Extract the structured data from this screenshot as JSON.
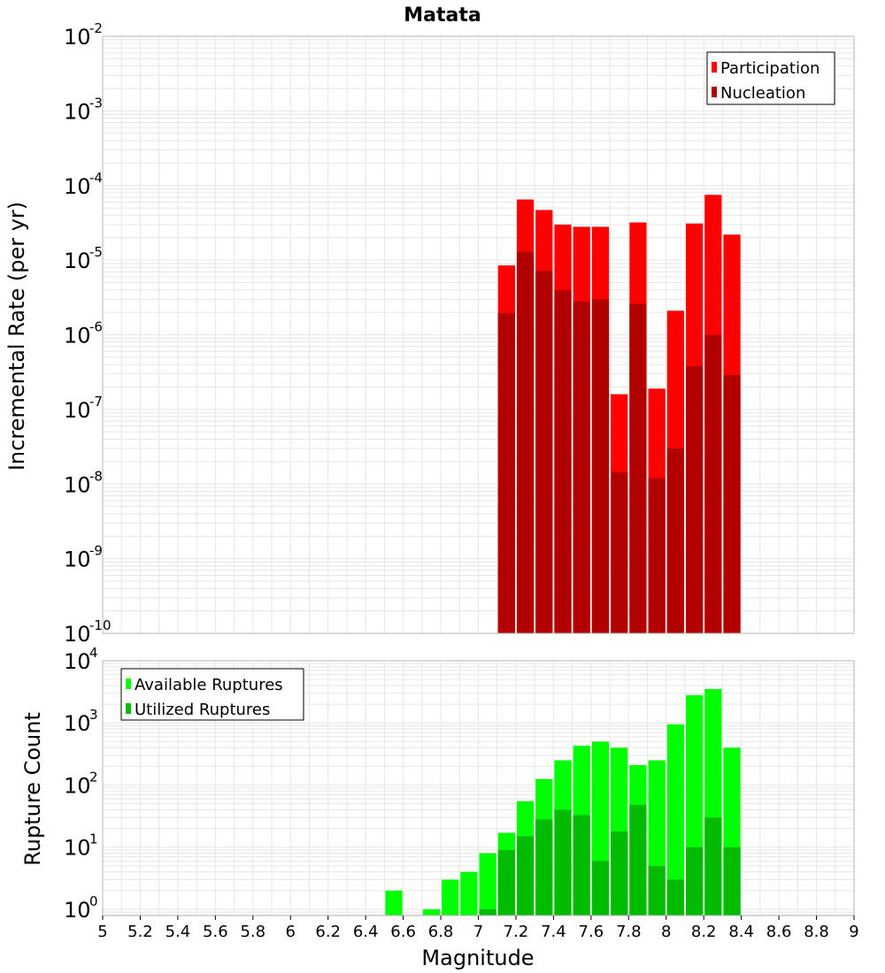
{
  "chart_data": [
    {
      "type": "bar",
      "title": "Matata",
      "xlabel": "",
      "ylabel": "Incremental Rate (per yr)",
      "xlim": [
        5,
        9
      ],
      "ylim_log10": [
        -10,
        -2
      ],
      "yscale": "log",
      "y_ticks_exp": [
        -10,
        -9,
        -8,
        -7,
        -6,
        -5,
        -4,
        -3,
        -2
      ],
      "legend_position": "top-right",
      "series": [
        {
          "name": "Participation",
          "color": "#ff0000",
          "x": [
            7.1,
            7.2,
            7.3,
            7.4,
            7.5,
            7.6,
            7.7,
            7.8,
            7.9,
            8.0,
            8.1,
            8.2,
            8.3
          ],
          "values": [
            8.5e-06,
            6.5e-05,
            4.7e-05,
            3e-05,
            2.8e-05,
            2.8e-05,
            1.6e-07,
            3.2e-05,
            1.9e-07,
            2.1e-06,
            3.1e-05,
            7.5e-05,
            2.2e-05
          ]
        },
        {
          "name": "Nucleation",
          "color": "#b20000",
          "x": [
            7.1,
            7.2,
            7.3,
            7.4,
            7.5,
            7.6,
            7.7,
            7.8,
            7.9,
            8.0,
            8.1,
            8.2,
            8.3
          ],
          "values": [
            1.95e-06,
            1.3e-05,
            7.2e-06,
            4e-06,
            2.8e-06,
            3e-06,
            1.45e-08,
            2.6e-06,
            1.2e-08,
            3e-08,
            3.8e-07,
            1e-06,
            2.9e-07
          ]
        }
      ]
    },
    {
      "type": "bar",
      "title": "",
      "xlabel": "Magnitude",
      "ylabel": "Rupture Count",
      "xlim": [
        5,
        9
      ],
      "ylim_log10": [
        -0.1,
        4
      ],
      "yscale": "log",
      "y_ticks_exp": [
        0,
        1,
        2,
        3,
        4
      ],
      "x_ticks": [
        "5",
        "5.2",
        "5.4",
        "5.6",
        "5.8",
        "6",
        "6.2",
        "6.4",
        "6.6",
        "6.8",
        "7",
        "7.2",
        "7.4",
        "7.6",
        "7.8",
        "8",
        "8.2",
        "8.4",
        "8.6",
        "8.8",
        "9"
      ],
      "legend_position": "top-left",
      "series": [
        {
          "name": "Available Ruptures",
          "color": "#00ff00",
          "x": [
            6.5,
            6.6,
            6.7,
            6.8,
            6.9,
            7.0,
            7.1,
            7.2,
            7.3,
            7.4,
            7.5,
            7.6,
            7.7,
            7.8,
            7.9,
            8.0,
            8.1,
            8.2,
            8.3
          ],
          "values": [
            2,
            0,
            1,
            3,
            4,
            8,
            17,
            55,
            125,
            250,
            430,
            500,
            400,
            210,
            250,
            950,
            2800,
            3500,
            400
          ]
        },
        {
          "name": "Utilized Ruptures",
          "color": "#00bb00",
          "x": [
            7.0,
            7.1,
            7.2,
            7.3,
            7.4,
            7.5,
            7.6,
            7.7,
            7.8,
            7.9,
            8.0,
            8.1,
            8.2,
            8.3
          ],
          "values": [
            1,
            9,
            15,
            28,
            40,
            33,
            6,
            18,
            48,
            5,
            3,
            10,
            30,
            10
          ]
        }
      ]
    }
  ],
  "colors": {
    "grid": "#e6e6e6",
    "frame": "#b4b4b4"
  }
}
